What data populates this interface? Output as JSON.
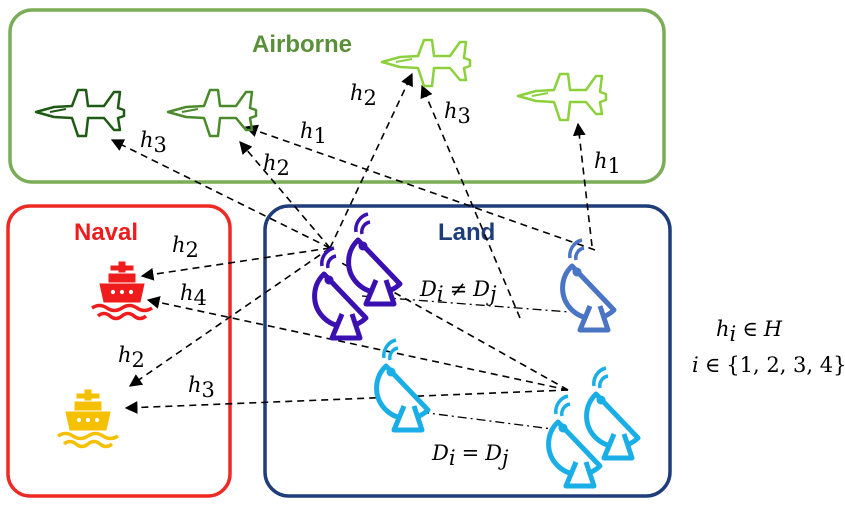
{
  "regions": {
    "airborne": {
      "title": "Airborne",
      "border_color": "#7aad55",
      "title_color": "#5b8f3a"
    },
    "naval": {
      "title": "Naval",
      "border_color": "#ee2a24",
      "title_color": "#ee1c1c"
    },
    "land": {
      "title": "Land",
      "border_color": "#1f3d7a",
      "title_color": "#1f3d7a"
    }
  },
  "icons": {
    "aircraft": [
      {
        "name": "jet-icon",
        "color": "#1e5a14"
      },
      {
        "name": "jet-icon",
        "color": "#4a8a2a"
      },
      {
        "name": "jet-icon",
        "color": "#8cd03c"
      },
      {
        "name": "jet-icon",
        "color": "#8cd03c"
      }
    ],
    "ships": [
      {
        "name": "ship-icon",
        "color": "#ee1c1c"
      },
      {
        "name": "ship-icon",
        "color": "#f5c000"
      }
    ],
    "radars": [
      {
        "name": "radar-dish-icon",
        "color": "#3a10b0"
      },
      {
        "name": "radar-dish-icon",
        "color": "#3a10b0"
      },
      {
        "name": "radar-dish-icon",
        "color": "#4a74c4"
      },
      {
        "name": "radar-dish-icon",
        "color": "#1aaee6"
      },
      {
        "name": "radar-dish-icon",
        "color": "#1aaee6"
      },
      {
        "name": "radar-dish-icon",
        "color": "#1aaee6"
      }
    ]
  },
  "links": {
    "h1": "h",
    "h1_sub": "1",
    "h2": "h",
    "h2_sub": "2",
    "h3": "h",
    "h3_sub": "3",
    "h4": "h",
    "h4_sub": "4"
  },
  "relations": {
    "different": {
      "lhs": "D",
      "lhs_sub": "i",
      "op": "≠",
      "rhs": "D",
      "rhs_sub": "j"
    },
    "same": {
      "lhs": "D",
      "lhs_sub": "i",
      "op": "=",
      "rhs": "D",
      "rhs_sub": "j"
    }
  },
  "legend": {
    "line1": {
      "var": "h",
      "sub": "i",
      "op": "∈",
      "set": "H"
    },
    "line2": {
      "var": "i",
      "op": "∈",
      "set": "{1, 2, 3, 4}"
    }
  }
}
